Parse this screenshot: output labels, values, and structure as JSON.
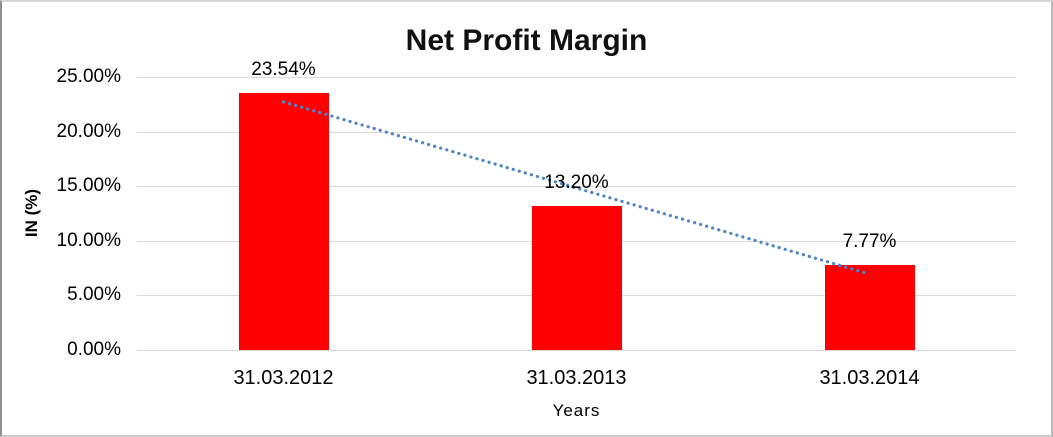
{
  "chart_data": {
    "type": "bar",
    "title": "Net Profit Margin",
    "xlabel": "Years",
    "ylabel": "IN (%)",
    "categories": [
      "31.03.2012",
      "31.03.2013",
      "31.03.2014"
    ],
    "values": [
      23.54,
      13.2,
      7.77
    ],
    "data_labels": [
      "23.54%",
      "13.20%",
      "7.77%"
    ],
    "ytick_values": [
      0,
      5,
      10,
      15,
      20,
      25
    ],
    "yticks": [
      "0.00%",
      "5.00%",
      "10.00%",
      "15.00%",
      "20.00%",
      "25.00%"
    ],
    "ylim": [
      0,
      25
    ],
    "grid": true,
    "legend": false,
    "bar_color": "#FF0000",
    "gridline_color": "#D9D9D9",
    "text_color": "#000000",
    "trendline": {
      "type": "linear",
      "style": "dotted",
      "color": "#4A86C8",
      "start": {
        "category_index": 0,
        "value": 22.72
      },
      "end": {
        "category_index": 2,
        "value": 6.95
      }
    }
  }
}
